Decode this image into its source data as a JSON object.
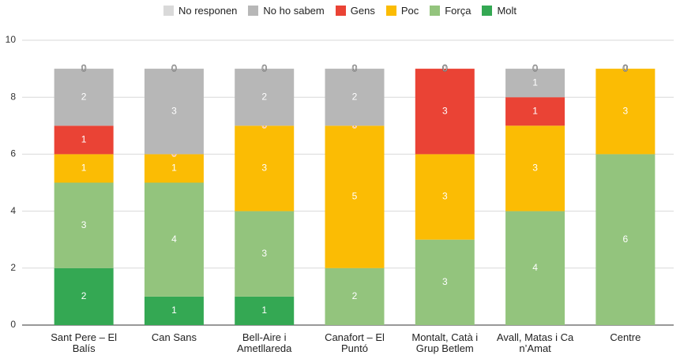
{
  "chart_data": {
    "type": "stacked_bar",
    "categories": [
      "Sant Pere – El Balís",
      "Can Sans",
      "Bell-Aire i Ametllareda",
      "Canafort – El Puntó",
      "Montalt, Catà i Grup Betlem",
      "Avall, Matas i Ca n’Amat",
      "Centre"
    ],
    "series": [
      {
        "name": "Molt",
        "color": "#34a853",
        "values": [
          2,
          1,
          1,
          0,
          0,
          0,
          0
        ]
      },
      {
        "name": "Força",
        "color": "#93c47d",
        "values": [
          3,
          4,
          3,
          2,
          3,
          4,
          6
        ]
      },
      {
        "name": "Poc",
        "color": "#fbbc04",
        "values": [
          1,
          1,
          3,
          5,
          3,
          3,
          3
        ]
      },
      {
        "name": "Gens",
        "color": "#ea4335",
        "values": [
          1,
          0,
          0,
          0,
          3,
          1,
          0
        ]
      },
      {
        "name": "No ho sabem",
        "color": "#b7b7b7",
        "values": [
          2,
          3,
          2,
          2,
          0,
          1,
          0
        ]
      },
      {
        "name": "No responen",
        "color": "#d9d9d9",
        "values": [
          0,
          0,
          0,
          0,
          0,
          0,
          0
        ]
      }
    ],
    "ylim": [
      0,
      10
    ],
    "yticks": [
      0,
      2,
      4,
      6,
      8,
      10
    ],
    "grid": true,
    "legend": "top"
  }
}
